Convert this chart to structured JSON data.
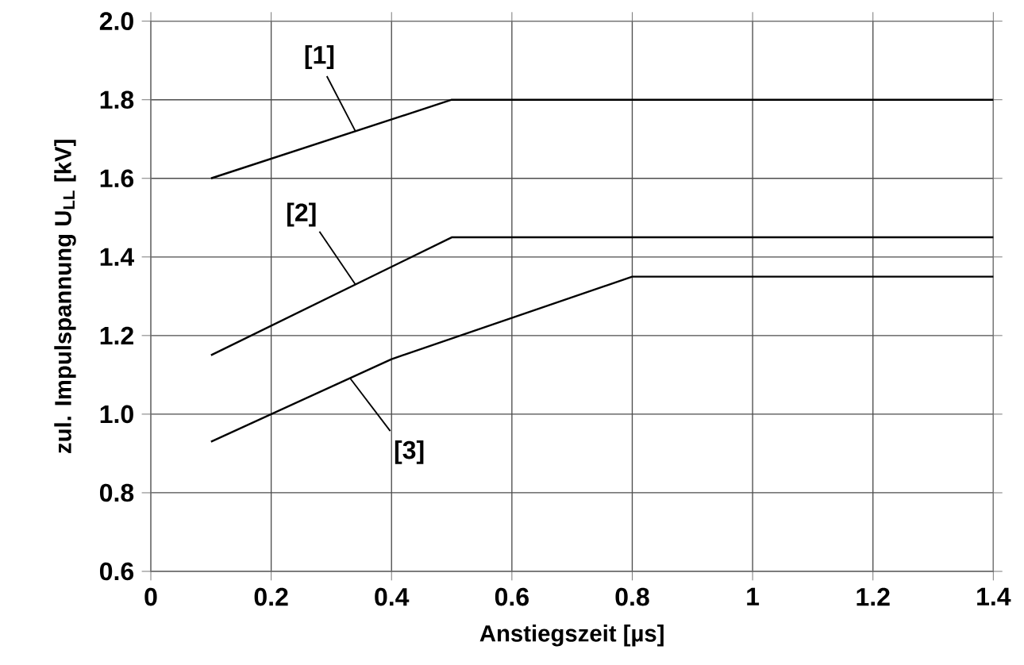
{
  "chart_data": {
    "type": "line",
    "xlabel": "Anstiegszeit  [µs]",
    "ylabel": "zul. Impulspannung U$_{LL}$ [kV]",
    "series": [
      {
        "name": "[1]",
        "color": "#000000",
        "x": [
          0.1,
          0.5,
          1.4
        ],
        "values": [
          1.6,
          1.8,
          1.8
        ]
      },
      {
        "name": "[2]",
        "color": "#000000",
        "x": [
          0.1,
          0.5,
          1.4
        ],
        "values": [
          1.15,
          1.45,
          1.45
        ]
      },
      {
        "name": "[3]",
        "color": "#000000",
        "x": [
          0.1,
          0.4,
          0.8,
          1.4
        ],
        "values": [
          0.93,
          1.14,
          1.35,
          1.35
        ]
      }
    ],
    "xlim": [
      0,
      1.4
    ],
    "xticks": [
      0,
      0.2,
      0.4,
      0.6,
      0.8,
      1,
      1.2,
      1.4
    ],
    "ylim": [
      0.6,
      2.0
    ],
    "yticks": [
      0.6,
      0.8,
      {
        "value": 1.0,
        "label": "1.0"
      },
      1.2,
      1.4,
      1.6,
      1.8,
      {
        "value": 2.0,
        "label": "2.0"
      }
    ],
    "grid": true,
    "marker": "none",
    "line_style": "solid"
  }
}
